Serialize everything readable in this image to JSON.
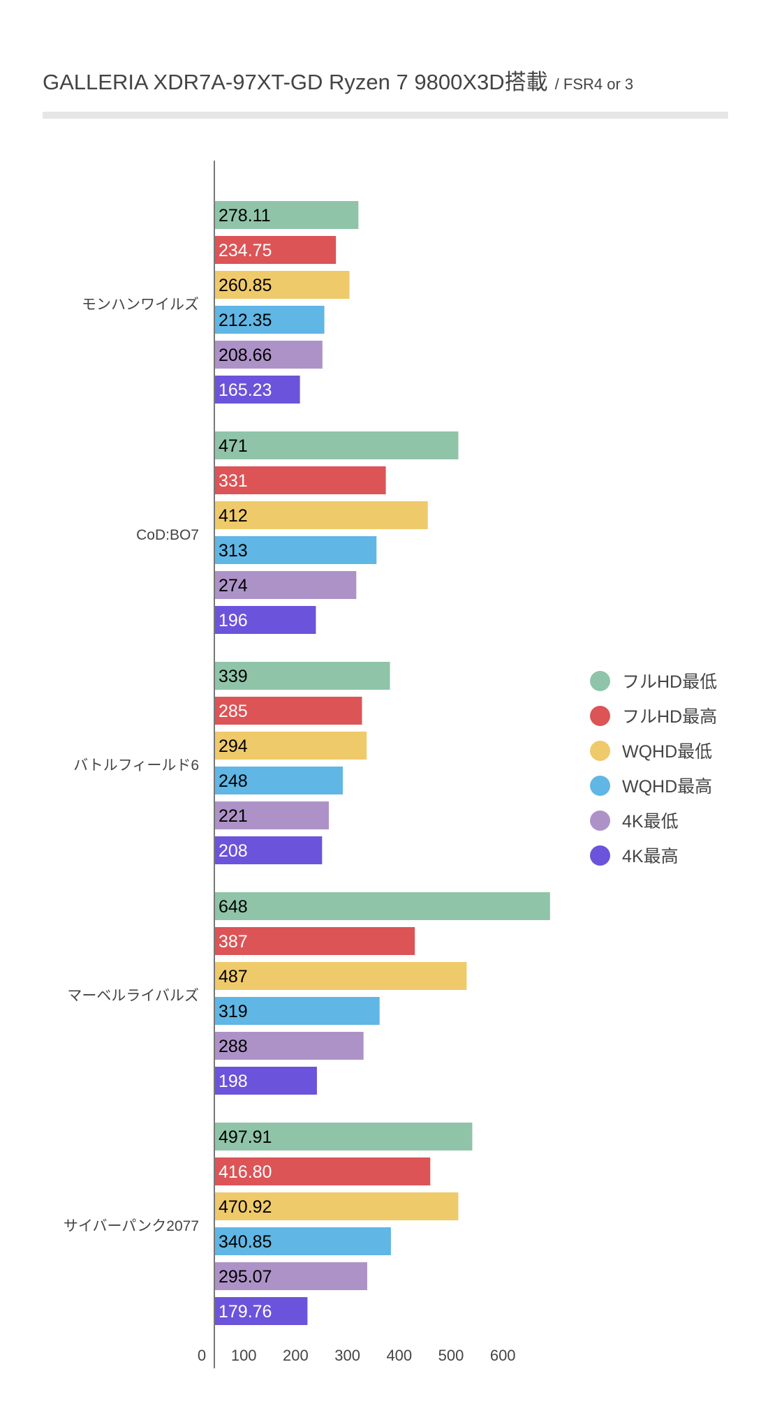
{
  "chart_data": {
    "type": "bar",
    "orientation": "horizontal",
    "title": "GALLERIA XDR7A-97XT-GD Ryzen 7 9800X3D搭載",
    "subtitle": "/ FSR4 or 3",
    "categories": [
      "モンハンワイルズ",
      "CoD:BO7",
      "バトルフィールド6",
      "マーベルライバルズ",
      "サイバーパンク2077"
    ],
    "series": [
      {
        "name": "フルHD最低",
        "color": "#8fc4a8",
        "label_color": "#000000",
        "values": [
          278.11,
          471,
          339,
          648,
          497.91
        ],
        "labels": [
          "278.11",
          "471",
          "339",
          "648",
          "497.91"
        ]
      },
      {
        "name": "フルHD最高",
        "color": "#dc5456",
        "label_color": "#ffffff",
        "values": [
          234.75,
          331,
          285,
          387,
          416.8
        ],
        "labels": [
          "234.75",
          "331",
          "285",
          "387",
          "416.80"
        ]
      },
      {
        "name": "WQHD最低",
        "color": "#efca6a",
        "label_color": "#000000",
        "values": [
          260.85,
          412,
          294,
          487,
          470.92
        ],
        "labels": [
          "260.85",
          "412",
          "294",
          "487",
          "470.92"
        ]
      },
      {
        "name": "WQHD最高",
        "color": "#60b6e4",
        "label_color": "#000000",
        "values": [
          212.35,
          313,
          248,
          319,
          340.85
        ],
        "labels": [
          "212.35",
          "313",
          "248",
          "319",
          "340.85"
        ]
      },
      {
        "name": "4K最低",
        "color": "#ad92c7",
        "label_color": "#000000",
        "values": [
          208.66,
          274,
          221,
          288,
          295.07
        ],
        "labels": [
          "208.66",
          "274",
          "221",
          "288",
          "295.07"
        ]
      },
      {
        "name": "4K最高",
        "color": "#6c53db",
        "label_color": "#ffffff",
        "values": [
          165.23,
          196,
          208,
          198,
          179.76
        ],
        "labels": [
          "165.23",
          "196",
          "208",
          "198",
          "179.76"
        ]
      }
    ],
    "xticks": [
      "0",
      "100",
      "200",
      "300",
      "400",
      "500",
      "600"
    ],
    "xlim": [
      0,
      700
    ],
    "grid": false,
    "legend_position": "right"
  }
}
